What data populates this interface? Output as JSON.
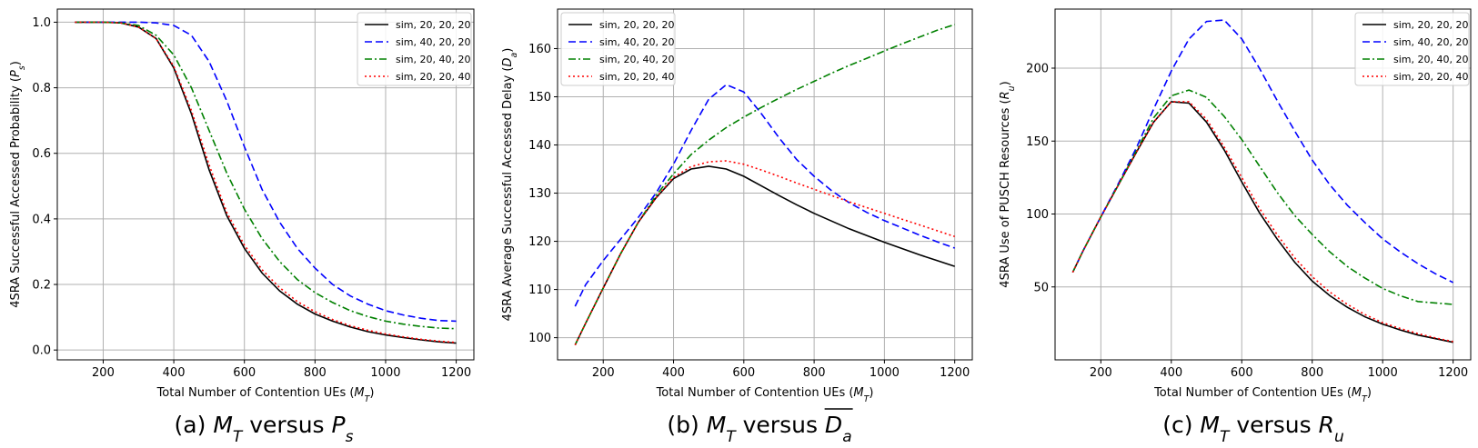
{
  "legend_labels": [
    "sim, 20, 20, 20",
    "sim, 40, 20, 20",
    "sim, 20, 40, 20",
    "sim, 20, 20, 40"
  ],
  "colors": {
    "s1": "#000000",
    "s2": "#0000ff",
    "s3": "#008000",
    "s4": "#ff0000",
    "grid": "#b0b0b0"
  },
  "captions": [
    {
      "prefix": "(a) ",
      "a": "M",
      "a_sub": "T",
      "mid": " versus ",
      "b": "P",
      "b_sub": "s",
      "overline": false
    },
    {
      "prefix": "(b) ",
      "a": "M",
      "a_sub": "T",
      "mid": " versus ",
      "b": "D",
      "b_sub": "a",
      "overline": true
    },
    {
      "prefix": "(c) ",
      "a": "M",
      "a_sub": "T",
      "mid": " versus ",
      "b": "R",
      "b_sub": "u",
      "overline": false
    }
  ],
  "chart_data": [
    {
      "type": "line",
      "xlabel": "Total Number of Contention UEs (M_T)",
      "ylabel": "4SRA Successful Accessed Probability (P_s)",
      "xlim": [
        70,
        1250
      ],
      "ylim": [
        -0.03,
        1.04
      ],
      "xticks": [
        200,
        400,
        600,
        800,
        1000,
        1200
      ],
      "yticks": [
        0.0,
        0.2,
        0.4,
        0.6,
        0.8,
        1.0
      ],
      "ytick_labels": [
        "0.0",
        "0.2",
        "0.4",
        "0.6",
        "0.8",
        "1.0"
      ],
      "grid": true,
      "legend": "top-right",
      "x": [
        120,
        200,
        250,
        300,
        350,
        400,
        450,
        500,
        550,
        600,
        650,
        700,
        750,
        800,
        850,
        900,
        950,
        1000,
        1050,
        1100,
        1150,
        1200
      ],
      "series": [
        {
          "name": "sim, 20, 20, 20",
          "style": "solid",
          "values": [
            1.0,
            1.0,
            0.998,
            0.985,
            0.95,
            0.86,
            0.72,
            0.55,
            0.41,
            0.31,
            0.235,
            0.18,
            0.14,
            0.11,
            0.088,
            0.07,
            0.056,
            0.046,
            0.038,
            0.031,
            0.025,
            0.021
          ]
        },
        {
          "name": "sim, 40, 20, 20",
          "style": "dashed",
          "values": [
            1.0,
            1.0,
            1.0,
            1.0,
            0.998,
            0.99,
            0.96,
            0.88,
            0.76,
            0.62,
            0.49,
            0.39,
            0.31,
            0.25,
            0.2,
            0.165,
            0.14,
            0.12,
            0.107,
            0.097,
            0.09,
            0.088
          ]
        },
        {
          "name": "sim, 20, 40, 20",
          "style": "dashdot",
          "values": [
            1.0,
            1.0,
            0.998,
            0.99,
            0.96,
            0.9,
            0.8,
            0.67,
            0.54,
            0.43,
            0.34,
            0.27,
            0.215,
            0.175,
            0.145,
            0.12,
            0.102,
            0.088,
            0.079,
            0.072,
            0.067,
            0.065
          ]
        },
        {
          "name": "sim, 20, 20, 40",
          "style": "dotted",
          "values": [
            1.0,
            1.0,
            0.998,
            0.985,
            0.95,
            0.865,
            0.73,
            0.565,
            0.42,
            0.32,
            0.245,
            0.19,
            0.148,
            0.117,
            0.093,
            0.074,
            0.06,
            0.049,
            0.04,
            0.033,
            0.027,
            0.023
          ]
        }
      ]
    },
    {
      "type": "line",
      "xlabel": "Total Number of Contention UEs (M_T)",
      "ylabel": "4SRA Average Successful Accessed Delay (D_a)",
      "xlim": [
        70,
        1250
      ],
      "ylim": [
        95.4,
        168.2
      ],
      "xticks": [
        200,
        400,
        600,
        800,
        1000,
        1200
      ],
      "yticks": [
        100,
        110,
        120,
        130,
        140,
        150,
        160
      ],
      "ytick_labels": [
        "100",
        "110",
        "120",
        "130",
        "140",
        "150",
        "160"
      ],
      "grid": true,
      "legend": "top-left",
      "x": [
        120,
        150,
        200,
        250,
        300,
        350,
        400,
        450,
        500,
        550,
        600,
        650,
        700,
        750,
        800,
        850,
        900,
        950,
        1000,
        1050,
        1100,
        1150,
        1200
      ],
      "series": [
        {
          "name": "sim, 20, 20, 20",
          "style": "solid",
          "values": [
            98.5,
            103.0,
            110.3,
            117.5,
            124.0,
            129.0,
            133.0,
            135.0,
            135.6,
            135.0,
            133.5,
            131.5,
            129.5,
            127.6,
            125.8,
            124.2,
            122.6,
            121.2,
            119.8,
            118.5,
            117.2,
            116.0,
            114.8
          ]
        },
        {
          "name": "sim, 40, 20, 20",
          "style": "dashed",
          "values": [
            106.5,
            111.0,
            116.0,
            120.5,
            125.0,
            130.0,
            136.0,
            143.0,
            149.5,
            152.5,
            151.0,
            146.5,
            141.5,
            137.0,
            133.5,
            130.5,
            128.0,
            126.0,
            124.3,
            122.8,
            121.3,
            119.9,
            118.6
          ]
        },
        {
          "name": "sim, 20, 40, 20",
          "style": "dashdot",
          "values": [
            98.5,
            103.0,
            110.3,
            117.5,
            124.0,
            129.5,
            134.0,
            138.0,
            141.0,
            143.6,
            145.8,
            147.8,
            149.7,
            151.5,
            153.2,
            154.9,
            156.5,
            158.0,
            159.5,
            161.0,
            162.4,
            163.8,
            165.0
          ]
        },
        {
          "name": "sim, 20, 20, 40",
          "style": "dotted",
          "values": [
            98.5,
            103.0,
            110.3,
            117.5,
            124.0,
            129.0,
            133.3,
            135.5,
            136.5,
            136.7,
            136.0,
            134.8,
            133.5,
            132.1,
            130.8,
            129.5,
            128.2,
            127.0,
            125.8,
            124.6,
            123.4,
            122.2,
            121.0
          ]
        }
      ]
    },
    {
      "type": "line",
      "xlabel": "Total Number of Contention UEs (M_T)",
      "ylabel": "4SRA Use of PUSCH Resources (R_u)",
      "xlim": [
        70,
        1250
      ],
      "ylim": [
        0,
        240.5
      ],
      "xticks": [
        200,
        400,
        600,
        800,
        1000,
        1200
      ],
      "yticks": [
        50,
        100,
        150,
        200
      ],
      "ytick_labels": [
        "50",
        "100",
        "150",
        "200"
      ],
      "grid": true,
      "legend": "top-right",
      "x": [
        120,
        150,
        200,
        250,
        300,
        350,
        400,
        450,
        500,
        550,
        600,
        650,
        700,
        750,
        800,
        850,
        900,
        950,
        1000,
        1050,
        1100,
        1150,
        1200
      ],
      "series": [
        {
          "name": "sim, 20, 20, 20",
          "style": "solid",
          "values": [
            60,
            75,
            98,
            120,
            142,
            163,
            177,
            176,
            163,
            144,
            122,
            101,
            83,
            67,
            54,
            44,
            36,
            29.5,
            24.5,
            20.5,
            17,
            14.5,
            12
          ]
        },
        {
          "name": "sim, 40, 20, 20",
          "style": "dashed",
          "values": [
            60,
            75,
            98,
            121,
            145,
            172,
            198,
            220,
            232,
            233,
            220,
            200,
            178,
            157,
            137,
            120,
            106,
            94,
            83,
            74,
            66,
            59,
            53
          ]
        },
        {
          "name": "sim, 20, 40, 20",
          "style": "dashdot",
          "values": [
            60,
            75,
            98,
            120,
            143,
            166,
            181,
            185,
            180,
            167,
            151,
            133,
            115,
            99,
            86,
            74,
            64,
            56,
            49,
            44,
            40,
            39,
            38
          ]
        },
        {
          "name": "sim, 20, 20, 40",
          "style": "dotted",
          "values": [
            60,
            75,
            98,
            120,
            142,
            163,
            177,
            177,
            165,
            146,
            125,
            104,
            86,
            70,
            57,
            46.5,
            38,
            31,
            25.5,
            21.5,
            18,
            15,
            12.5
          ]
        }
      ]
    }
  ]
}
